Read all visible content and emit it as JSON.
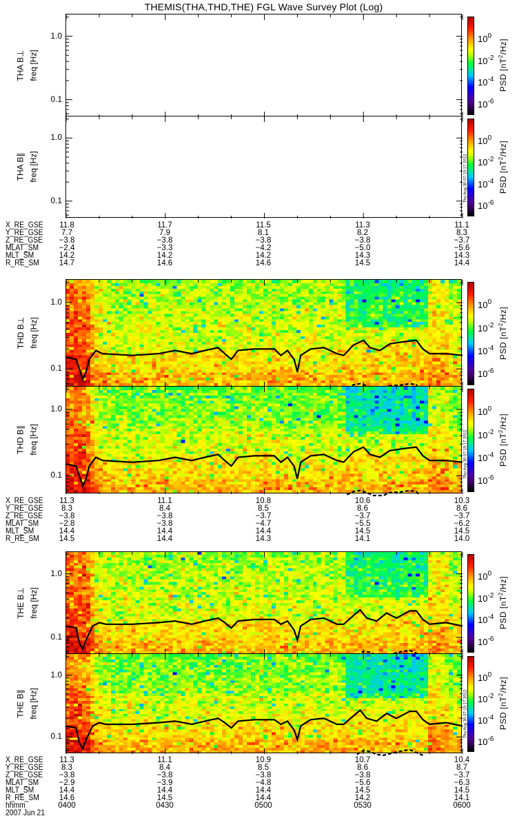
{
  "title": "THEMIS(THA,THD,THE) FGL Wave Survey Plot (Log)",
  "panels": [
    {
      "probe_label": "THA B⊥",
      "ylabel": "freq [Hz]",
      "has_data": false
    },
    {
      "probe_label": "THA B∥",
      "ylabel": "freq [Hz]",
      "has_data": false
    },
    {
      "probe_label": "THD B⊥",
      "ylabel": "freq [Hz]",
      "has_data": true
    },
    {
      "probe_label": "THD B∥",
      "ylabel": "freq [Hz]",
      "has_data": true
    },
    {
      "probe_label": "THE B⊥",
      "ylabel": "freq [Hz]",
      "has_data": true
    },
    {
      "probe_label": "THE B∥",
      "ylabel": "freq [Hz]",
      "has_data": true
    }
  ],
  "colorbar": {
    "label_main": "PSD [nT",
    "label_sup": "2",
    "label_end": "/Hz]",
    "ticks": [
      {
        "base": "10",
        "exp": "0",
        "value": 0
      },
      {
        "base": "10",
        "exp": "-2",
        "value": -2
      },
      {
        "base": "10",
        "exp": "-4",
        "value": -4
      },
      {
        "base": "10",
        "exp": "-6",
        "value": -6
      }
    ],
    "zlim_log10": [
      -7,
      2
    ]
  },
  "timestamp": "Thu Aug 30 07:10:17 2012",
  "ephemeris": [
    {
      "rows": [
        {
          "label": "X_RE_GSE",
          "values": [
            "11.8",
            "11.7",
            "11.5",
            "11.3",
            "11.1"
          ]
        },
        {
          "label": "Y_RE_GSE",
          "values": [
            "7.7",
            "7.9",
            "8.1",
            "8.2",
            "8.3"
          ]
        },
        {
          "label": "Z_RE_GSE",
          "values": [
            "−3.8",
            "−3.8",
            "−3.8",
            "−3.8",
            "−3.7"
          ]
        },
        {
          "label": "MLAT_SM",
          "values": [
            "−2.4",
            "−3.3",
            "−4.2",
            "−5.0",
            "−5.6"
          ]
        },
        {
          "label": "MLT_SM",
          "values": [
            "14.2",
            "14.2",
            "14.2",
            "14.3",
            "14.3"
          ]
        },
        {
          "label": "R_RE_SM",
          "values": [
            "14.7",
            "14.6",
            "14.6",
            "14.5",
            "14.4"
          ]
        }
      ]
    },
    {
      "rows": [
        {
          "label": "X_RE_GSE",
          "values": [
            "11.3",
            "11.1",
            "10.8",
            "10.6",
            "10.3"
          ]
        },
        {
          "label": "Y_RE_GSE",
          "values": [
            "8.3",
            "8.4",
            "8.5",
            "8.6",
            "8.6"
          ]
        },
        {
          "label": "Z_RE_GSE",
          "values": [
            "−3.8",
            "−3.8",
            "−3.7",
            "−3.7",
            "−3.7"
          ]
        },
        {
          "label": "MLAT_SM",
          "values": [
            "−2.8",
            "−3.8",
            "−4.7",
            "−5.5",
            "−6.2"
          ]
        },
        {
          "label": "MLT_SM",
          "values": [
            "14.4",
            "14.4",
            "14.4",
            "14.5",
            "14.5"
          ]
        },
        {
          "label": "R_RE_SM",
          "values": [
            "14.5",
            "14.4",
            "14.3",
            "14.1",
            "14.0"
          ]
        }
      ]
    },
    {
      "rows": [
        {
          "label": "X_RE_GSE",
          "values": [
            "11.3",
            "11.1",
            "10.9",
            "10.7",
            "10.4"
          ]
        },
        {
          "label": "Y_RE_GSE",
          "values": [
            "8.3",
            "8.4",
            "8.5",
            "8.6",
            "8.7"
          ]
        },
        {
          "label": "Z_RE_GSE",
          "values": [
            "−3.8",
            "−3.8",
            "−3.8",
            "−3.8",
            "−3.7"
          ]
        },
        {
          "label": "MLAT_SM",
          "values": [
            "−2.9",
            "−3.9",
            "−4.8",
            "−5.6",
            "−6.3"
          ]
        },
        {
          "label": "MLT_SM",
          "values": [
            "14.4",
            "14.4",
            "14.4",
            "14.5",
            "14.5"
          ]
        },
        {
          "label": "R_RE_SM",
          "values": [
            "14.6",
            "14.5",
            "14.4",
            "14.2",
            "14.1"
          ]
        },
        {
          "label": "hhmm",
          "values": [
            "0400",
            "0430",
            "0500",
            "0530",
            "0600"
          ]
        }
      ],
      "date": "2007 Jun 21"
    }
  ],
  "chart_data": {
    "type": "heatmap",
    "title": "THEMIS(THA,THD,THE) FGL Wave Survey Plot (Log)",
    "xlabel": "hhmm",
    "x_unit": "minutes after 0400 UT, 2007 Jun 21",
    "xlim": [
      0,
      120
    ],
    "xtick_labels": [
      "0400",
      "0430",
      "0500",
      "0530",
      "0600"
    ],
    "ylabel": "freq [Hz]",
    "yscale": "log",
    "ylim": [
      0.053,
      2.2
    ],
    "ytick_labels": [
      "0.1",
      "1.0"
    ],
    "yticks": [
      0.1,
      1.0
    ],
    "zlabel": "PSD [nT^2/Hz]",
    "zscale": "log",
    "zlim_log10": [
      -7,
      2
    ],
    "background_psd_log10": {
      "low_freq": -0.9,
      "high_freq": -1.6,
      "early_enhancement_until_min": 9,
      "early_psd_log10": 0.9,
      "weak_high_freq_interval_min": [
        85,
        110
      ],
      "weak_psd_log10": -2.6
    },
    "series": [
      {
        "name": "THD solid line",
        "panel": "THD",
        "style": "solid",
        "t": [
          0,
          3,
          5,
          6,
          7,
          9,
          11,
          20,
          28,
          33,
          38,
          42,
          46,
          48,
          50,
          52,
          57,
          63,
          65,
          67,
          69,
          70,
          71,
          74,
          78,
          82,
          84,
          87,
          90,
          92,
          95,
          98,
          103,
          106,
          108,
          110,
          115,
          120
        ],
        "f": [
          0.15,
          0.14,
          0.07,
          0.09,
          0.14,
          0.19,
          0.17,
          0.16,
          0.17,
          0.19,
          0.17,
          0.19,
          0.21,
          0.17,
          0.14,
          0.19,
          0.2,
          0.2,
          0.16,
          0.19,
          0.14,
          0.09,
          0.16,
          0.2,
          0.21,
          0.17,
          0.16,
          0.23,
          0.27,
          0.21,
          0.19,
          0.24,
          0.26,
          0.27,
          0.2,
          0.17,
          0.17,
          0.16
        ]
      },
      {
        "name": "THD dashed line",
        "panel": "THD",
        "style": "dashed",
        "t": [
          85,
          87,
          89,
          91,
          93,
          96,
          98,
          101,
          104,
          106,
          107
        ],
        "f": [
          0.052,
          0.058,
          0.06,
          0.056,
          0.05,
          0.05,
          0.056,
          0.057,
          0.06,
          0.058,
          0.05
        ]
      },
      {
        "name": "THE solid line",
        "panel": "THE",
        "style": "solid",
        "t": [
          0,
          3,
          4,
          5,
          6,
          8,
          10,
          12,
          20,
          28,
          33,
          38,
          42,
          46,
          48,
          50,
          52,
          57,
          63,
          65,
          67,
          69,
          70,
          71,
          74,
          78,
          82,
          84,
          87,
          89,
          91,
          94,
          97,
          100,
          104,
          106,
          108,
          110,
          115,
          120
        ],
        "f": [
          0.15,
          0.14,
          0.08,
          0.065,
          0.09,
          0.15,
          0.17,
          0.16,
          0.16,
          0.17,
          0.18,
          0.16,
          0.18,
          0.2,
          0.17,
          0.14,
          0.18,
          0.19,
          0.19,
          0.16,
          0.18,
          0.13,
          0.09,
          0.15,
          0.19,
          0.2,
          0.16,
          0.16,
          0.22,
          0.27,
          0.2,
          0.18,
          0.24,
          0.2,
          0.26,
          0.26,
          0.19,
          0.16,
          0.17,
          0.15
        ]
      },
      {
        "name": "THE dashed line",
        "panel": "THE",
        "style": "dashed",
        "t": [
          88,
          90,
          92,
          94,
          96,
          99,
          102,
          104,
          106,
          108
        ],
        "f": [
          0.052,
          0.06,
          0.058,
          0.052,
          0.05,
          0.055,
          0.06,
          0.062,
          0.056,
          0.05
        ]
      }
    ]
  }
}
